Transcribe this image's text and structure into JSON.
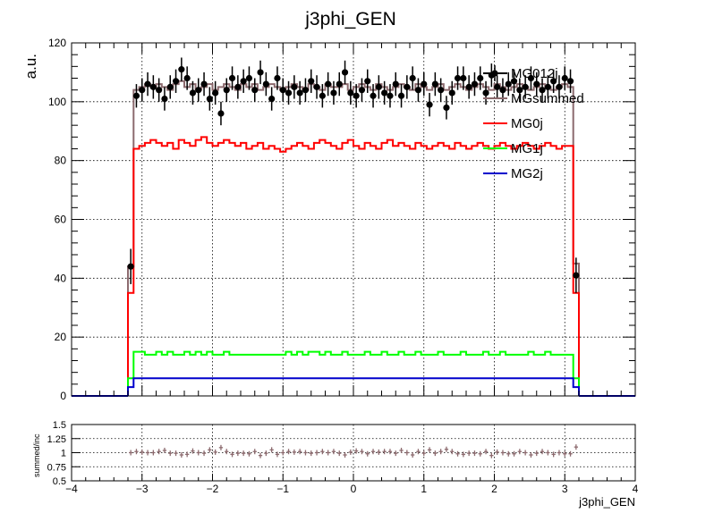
{
  "chart_data": {
    "type": "line",
    "title": "j3phi_GEN",
    "xlabel": "j3phi_GEN",
    "ylabel": "a.u.",
    "xlim": [
      -4,
      4
    ],
    "ylim": [
      0,
      120
    ],
    "xticks": [
      "−4",
      "−3",
      "−2",
      "−1",
      "0",
      "1",
      "2",
      "3",
      "4"
    ],
    "yticks": [
      "0",
      "20",
      "40",
      "60",
      "80",
      "100",
      "120"
    ],
    "grid": true,
    "legend_position": "top-right",
    "colors": {
      "MG012j": "#000000",
      "MGsummed": "#8c6a6e",
      "MG0j": "#ff0000",
      "MG1j": "#00ff00",
      "MG2j": "#0000cc"
    },
    "bin_edges": {
      "first_edge": -3.2,
      "width": 0.08,
      "count": 80,
      "note_first_last": "edge bins at -3.2 to -3.12 and 3.12 to 3.2"
    },
    "series": [
      {
        "name": "MG012j",
        "style": "points_with_errors",
        "values": [
          44,
          102,
          104,
          106,
          105,
          104,
          101,
          105,
          107,
          111,
          108,
          103,
          104,
          106,
          101,
          103,
          96,
          104,
          108,
          105,
          107,
          108,
          104,
          110,
          106,
          101,
          108,
          104,
          103,
          105,
          103,
          104,
          107,
          105,
          102,
          106,
          103,
          106,
          110,
          103,
          102,
          104,
          107,
          102,
          105,
          103,
          102,
          106,
          102,
          105,
          108,
          104,
          106,
          99,
          106,
          104,
          98,
          103,
          108,
          108,
          105,
          106,
          108,
          103,
          109,
          105,
          104,
          106,
          107,
          104,
          105,
          108,
          106,
          104,
          105,
          107,
          105,
          108,
          107,
          41
        ],
        "errors": [
          6,
          4,
          4,
          4,
          4,
          4,
          4,
          4,
          4,
          4,
          4,
          4,
          4,
          4,
          4,
          4,
          4,
          4,
          4,
          4,
          4,
          4,
          4,
          4,
          4,
          4,
          4,
          4,
          4,
          4,
          4,
          4,
          4,
          4,
          4,
          4,
          4,
          4,
          4,
          4,
          4,
          4,
          4,
          4,
          4,
          4,
          4,
          4,
          4,
          4,
          4,
          4,
          4,
          4,
          4,
          4,
          4,
          4,
          4,
          4,
          4,
          4,
          4,
          4,
          4,
          4,
          4,
          4,
          4,
          4,
          4,
          4,
          4,
          4,
          4,
          4,
          4,
          4,
          4,
          6
        ]
      },
      {
        "name": "MGsummed",
        "style": "step",
        "values": [
          44,
          104,
          105,
          106,
          105,
          106,
          105,
          104,
          106,
          107,
          105,
          106,
          104,
          105,
          106,
          104,
          105,
          106,
          105,
          104,
          106,
          105,
          106,
          104,
          105,
          106,
          105,
          104,
          105,
          106,
          105,
          104,
          106,
          105,
          104,
          106,
          105,
          105,
          106,
          104,
          105,
          106,
          105,
          104,
          106,
          105,
          104,
          105,
          106,
          105,
          104,
          106,
          105,
          104,
          105,
          106,
          104,
          105,
          106,
          105,
          104,
          105,
          106,
          105,
          104,
          106,
          105,
          104,
          105,
          106,
          105,
          104,
          105,
          106,
          105,
          104,
          105,
          106,
          105,
          45
        ]
      },
      {
        "name": "MG0j",
        "style": "step",
        "values": [
          35,
          84,
          85,
          86,
          87,
          86,
          85,
          86,
          84,
          87,
          86,
          85,
          87,
          88,
          86,
          85,
          86,
          87,
          86,
          85,
          86,
          84,
          85,
          86,
          84,
          85,
          84,
          83,
          84,
          85,
          86,
          85,
          84,
          86,
          87,
          86,
          85,
          84,
          86,
          87,
          85,
          84,
          86,
          85,
          84,
          86,
          87,
          85,
          86,
          85,
          84,
          86,
          85,
          84,
          85,
          86,
          85,
          84,
          86,
          85,
          84,
          85,
          86,
          85,
          84,
          85,
          86,
          85,
          84,
          85,
          86,
          85,
          84,
          85,
          86,
          85,
          84,
          85,
          85,
          35
        ]
      },
      {
        "name": "MG1j",
        "style": "step",
        "values": [
          6,
          15,
          15,
          14,
          14,
          15,
          14,
          15,
          14,
          14,
          15,
          14,
          15,
          14,
          15,
          14,
          14,
          15,
          14,
          14,
          14,
          14,
          14,
          14,
          14,
          14,
          14,
          14,
          15,
          14,
          15,
          14,
          15,
          15,
          14,
          15,
          14,
          14,
          15,
          14,
          14,
          14,
          15,
          14,
          14,
          15,
          14,
          14,
          15,
          14,
          14,
          15,
          14,
          14,
          14,
          15,
          14,
          14,
          14,
          15,
          14,
          14,
          14,
          15,
          14,
          14,
          15,
          14,
          14,
          14,
          14,
          15,
          14,
          14,
          15,
          14,
          14,
          14,
          14,
          6
        ]
      },
      {
        "name": "MG2j",
        "style": "step",
        "values": [
          3,
          6,
          6,
          6,
          6,
          6,
          6,
          6,
          6,
          6,
          6,
          6,
          6,
          6,
          6,
          6,
          6,
          6,
          6,
          6,
          6,
          6,
          6,
          6,
          6,
          6,
          6,
          6,
          6,
          6,
          6,
          6,
          6,
          6,
          6,
          6,
          6,
          6,
          6,
          6,
          6,
          6,
          6,
          6,
          6,
          6,
          6,
          6,
          6,
          6,
          6,
          6,
          6,
          6,
          6,
          6,
          6,
          6,
          6,
          6,
          6,
          6,
          6,
          6,
          6,
          6,
          6,
          6,
          6,
          6,
          6,
          6,
          6,
          6,
          6,
          6,
          6,
          6,
          6,
          3
        ]
      }
    ],
    "ratio_panel": {
      "ylabel": "summed/inc",
      "ylim": [
        0.5,
        1.5
      ],
      "yticks": [
        "0.5",
        "0.75",
        "1",
        "1.25",
        "1.5"
      ],
      "values": [
        1.0,
        1.02,
        1.01,
        1.0,
        1.0,
        1.02,
        1.04,
        0.99,
        0.99,
        0.96,
        0.97,
        1.03,
        1.0,
        0.99,
        1.05,
        1.01,
        1.09,
        1.02,
        0.97,
        0.99,
        0.99,
        0.98,
        1.02,
        0.95,
        0.99,
        1.05,
        0.97,
        1.0,
        1.02,
        1.01,
        1.02,
        1.0,
        0.99,
        1.0,
        1.02,
        1.0,
        1.02,
        0.99,
        0.96,
        1.01,
        1.03,
        1.02,
        0.98,
        1.02,
        1.01,
        1.02,
        1.02,
        0.99,
        1.04,
        1.0,
        0.96,
        1.02,
        0.99,
        1.05,
        0.99,
        1.02,
        1.06,
        1.02,
        0.98,
        0.97,
        0.99,
        0.99,
        0.98,
        1.02,
        0.95,
        1.01,
        1.0,
        0.98,
        0.98,
        1.02,
        1.0,
        0.96,
        0.99,
        1.02,
        1.0,
        0.97,
        1.0,
        0.98,
        0.98,
        1.1
      ]
    }
  }
}
